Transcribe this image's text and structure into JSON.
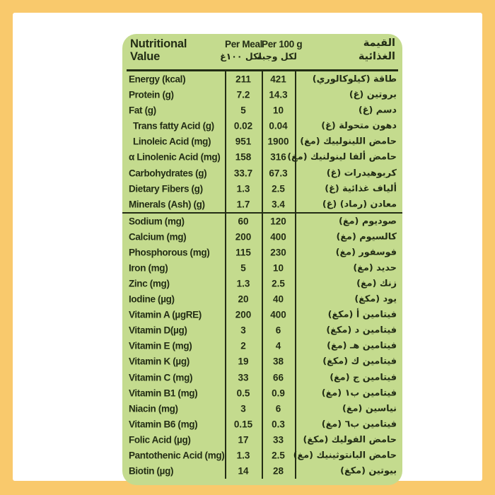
{
  "colors": {
    "frame": "#F9C96C",
    "card": "#FFFFFF",
    "table_bg": "#C4DB8E",
    "ink": "#232D15"
  },
  "header": {
    "title_en": [
      "Nutritional",
      "Value"
    ],
    "per_meal_en": "Per Meal",
    "per_100g_en": "Per 100 g",
    "ar_under_per_meal": "لكل ١٠٠غ",
    "ar_under_per_100g": "لكل وجبة",
    "title_ar": [
      "القيمة",
      "الغذائية"
    ]
  },
  "rows": [
    {
      "en": "Energy (kcal)",
      "meal": "211",
      "per100": "421",
      "ar": "طاقة (كيلوكالوري)"
    },
    {
      "en": "Protein (g)",
      "meal": "7.2",
      "per100": "14.3",
      "ar": "بروتين (غ)"
    },
    {
      "en": "Fat (g)",
      "meal": "5",
      "per100": "10",
      "ar": "دسم (غ)"
    },
    {
      "en": "Trans fatty Acid (g)",
      "meal": "0.02",
      "per100": "0.04",
      "ar": "دهون متحولة (غ)",
      "indent": true
    },
    {
      "en": "Linoleic Acid (mg)",
      "meal": "951",
      "per100": "1900",
      "ar": "حامض اللينولييك (مغ)",
      "indent": true
    },
    {
      "en": "α Linolenic Acid (mg)",
      "meal": "158",
      "per100": "316",
      "ar": "حامض ألفا لينولنيك (مغ)"
    },
    {
      "en": "Carbohydrates (g)",
      "meal": "33.7",
      "per100": "67.3",
      "ar": "كربوهيدرات (غ)"
    },
    {
      "en": "Dietary Fibers (g)",
      "meal": "1.3",
      "per100": "2.5",
      "ar": "ألياف غذائية (غ)"
    },
    {
      "en": "Minerals (Ash) (g)",
      "meal": "1.7",
      "per100": "3.4",
      "ar": "معادن (رماد) (غ)"
    },
    {
      "en": "Sodium (mg)",
      "meal": "60",
      "per100": "120",
      "ar": "صوديوم (مغ)",
      "thick_top": true
    },
    {
      "en": "Calcium (mg)",
      "meal": "200",
      "per100": "400",
      "ar": "كالسيوم (مغ)"
    },
    {
      "en": "Phosphorous (mg)",
      "meal": "115",
      "per100": "230",
      "ar": "فوسفور (مغ)"
    },
    {
      "en": "Iron (mg)",
      "meal": "5",
      "per100": "10",
      "ar": "حديد (مغ)"
    },
    {
      "en": "Zinc (mg)",
      "meal": "1.3",
      "per100": "2.5",
      "ar": "زنك (مغ)"
    },
    {
      "en": "Iodine (µg)",
      "meal": "20",
      "per100": "40",
      "ar": "يود (مكغ)"
    },
    {
      "en": "Vitamin A (µgRE)",
      "meal": "200",
      "per100": "400",
      "ar": "فيتامين أ (مكغ)"
    },
    {
      "en": "Vitamin D(µg)",
      "meal": "3",
      "per100": "6",
      "ar": "فيتامين د (مكغ)"
    },
    {
      "en": "Vitamin E (mg)",
      "meal": "2",
      "per100": "4",
      "ar": "فيتامين هـ (مغ)"
    },
    {
      "en": "Vitamin K (µg)",
      "meal": "19",
      "per100": "38",
      "ar": "فيتامين ك (مكغ)"
    },
    {
      "en": "Vitamin C (mg)",
      "meal": "33",
      "per100": "66",
      "ar": "فيتامين ج (مغ)"
    },
    {
      "en": "Vitamin B1 (mg)",
      "meal": "0.5",
      "per100": "0.9",
      "ar": "فيتامين ب١ (مغ)"
    },
    {
      "en": "Niacin (mg)",
      "meal": "3",
      "per100": "6",
      "ar": "نياسين (مغ)"
    },
    {
      "en": "Vitamin B6 (mg)",
      "meal": "0.15",
      "per100": "0.3",
      "ar": "فيتامين ب٦ (مغ)"
    },
    {
      "en": "Folic Acid (µg)",
      "meal": "17",
      "per100": "33",
      "ar": "حامض الفوليك (مكغ)"
    },
    {
      "en": "Pantothenic Acid (mg)",
      "meal": "1.3",
      "per100": "2.5",
      "ar": "حامض البانتوثينيك (مغ)"
    },
    {
      "en": "Biotin (µg)",
      "meal": "14",
      "per100": "28",
      "ar": "بيوتين (مكغ)"
    }
  ]
}
